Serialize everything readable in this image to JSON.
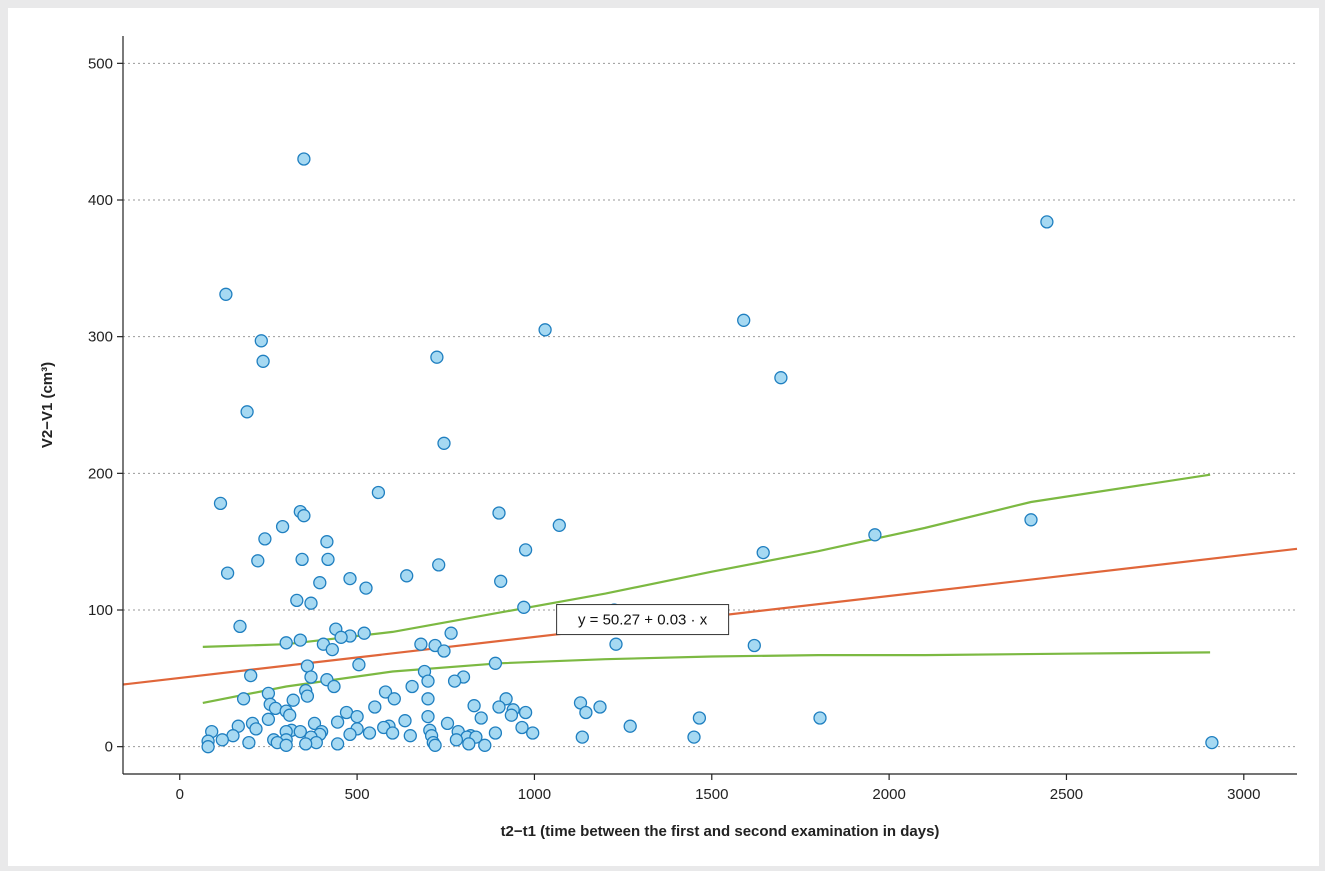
{
  "chart_data": {
    "type": "scatter",
    "title": "",
    "xlabel": "t2−t1 (time between the first and second examination in days)",
    "ylabel": "V2−V1 (cm³)",
    "xlim": [
      -160,
      3150
    ],
    "ylim": [
      -20,
      520
    ],
    "x_ticks": [
      0,
      500,
      1000,
      1500,
      2000,
      2500,
      3000
    ],
    "y_ticks": [
      0,
      100,
      200,
      300,
      400,
      500
    ],
    "grid": "horizontal dotted",
    "legend": "none",
    "annotation": "y = 50.27 + 0.03 · x",
    "colors": {
      "points_fill": "#a6d9f2",
      "points_edge": "#1f7fc0",
      "regression_line": "#e0663a",
      "confidence_band": "#7cb942"
    },
    "regression": {
      "intercept": 50.27,
      "slope": 0.03
    },
    "confidence_band": {
      "upper": [
        [
          65,
          73
        ],
        [
          300,
          75
        ],
        [
          600,
          84
        ],
        [
          900,
          98
        ],
        [
          1200,
          112
        ],
        [
          1500,
          128
        ],
        [
          1800,
          143
        ],
        [
          2100,
          160
        ],
        [
          2400,
          179
        ],
        [
          2905,
          199
        ]
      ],
      "lower": [
        [
          65,
          32
        ],
        [
          300,
          44
        ],
        [
          600,
          55
        ],
        [
          900,
          61
        ],
        [
          1200,
          64
        ],
        [
          1500,
          66
        ],
        [
          1800,
          67
        ],
        [
          2100,
          67
        ],
        [
          2500,
          68
        ],
        [
          2905,
          69
        ]
      ]
    },
    "points": [
      [
        350,
        430
      ],
      [
        2445,
        384
      ],
      [
        130,
        331
      ],
      [
        230,
        297
      ],
      [
        235,
        282
      ],
      [
        1030,
        305
      ],
      [
        725,
        285
      ],
      [
        1590,
        312
      ],
      [
        1695,
        270
      ],
      [
        190,
        245
      ],
      [
        745,
        222
      ],
      [
        560,
        186
      ],
      [
        115,
        178
      ],
      [
        900,
        171
      ],
      [
        1070,
        162
      ],
      [
        290,
        161
      ],
      [
        340,
        172
      ],
      [
        350,
        169
      ],
      [
        2400,
        166
      ],
      [
        1960,
        155
      ],
      [
        240,
        152
      ],
      [
        415,
        150
      ],
      [
        975,
        144
      ],
      [
        1645,
        142
      ],
      [
        345,
        137
      ],
      [
        418,
        137
      ],
      [
        730,
        133
      ],
      [
        220,
        136
      ],
      [
        135,
        127
      ],
      [
        640,
        125
      ],
      [
        480,
        123
      ],
      [
        905,
        121
      ],
      [
        395,
        120
      ],
      [
        525,
        116
      ],
      [
        330,
        107
      ],
      [
        370,
        105
      ],
      [
        970,
        102
      ],
      [
        1225,
        100
      ],
      [
        170,
        88
      ],
      [
        440,
        86
      ],
      [
        765,
        83
      ],
      [
        520,
        83
      ],
      [
        480,
        81
      ],
      [
        455,
        80
      ],
      [
        405,
        75
      ],
      [
        300,
        76
      ],
      [
        340,
        78
      ],
      [
        680,
        75
      ],
      [
        720,
        74
      ],
      [
        1230,
        75
      ],
      [
        1620,
        74
      ],
      [
        430,
        71
      ],
      [
        745,
        70
      ],
      [
        890,
        61
      ],
      [
        505,
        60
      ],
      [
        360,
        59
      ],
      [
        690,
        55
      ],
      [
        200,
        52
      ],
      [
        370,
        51
      ],
      [
        800,
        51
      ],
      [
        415,
        49
      ],
      [
        775,
        48
      ],
      [
        700,
        48
      ],
      [
        655,
        44
      ],
      [
        435,
        44
      ],
      [
        355,
        41
      ],
      [
        580,
        40
      ],
      [
        250,
        39
      ],
      [
        360,
        37
      ],
      [
        180,
        35
      ],
      [
        605,
        35
      ],
      [
        700,
        35
      ],
      [
        320,
        34
      ],
      [
        920,
        35
      ],
      [
        1130,
        32
      ],
      [
        830,
        30
      ],
      [
        255,
        31
      ],
      [
        550,
        29
      ],
      [
        1185,
        29
      ],
      [
        900,
        29
      ],
      [
        270,
        28
      ],
      [
        940,
        27
      ],
      [
        300,
        26
      ],
      [
        975,
        25
      ],
      [
        470,
        25
      ],
      [
        1145,
        25
      ],
      [
        935,
        23
      ],
      [
        310,
        23
      ],
      [
        500,
        22
      ],
      [
        700,
        22
      ],
      [
        1805,
        21
      ],
      [
        1465,
        21
      ],
      [
        850,
        21
      ],
      [
        250,
        20
      ],
      [
        635,
        19
      ],
      [
        205,
        17
      ],
      [
        380,
        17
      ],
      [
        445,
        18
      ],
      [
        755,
        17
      ],
      [
        165,
        15
      ],
      [
        590,
        15
      ],
      [
        1270,
        15
      ],
      [
        575,
        14
      ],
      [
        965,
        14
      ],
      [
        215,
        13
      ],
      [
        315,
        12
      ],
      [
        300,
        11
      ],
      [
        340,
        11
      ],
      [
        400,
        11
      ],
      [
        500,
        13
      ],
      [
        705,
        12
      ],
      [
        90,
        11
      ],
      [
        785,
        11
      ],
      [
        995,
        10
      ],
      [
        535,
        10
      ],
      [
        600,
        10
      ],
      [
        890,
        10
      ],
      [
        710,
        8
      ],
      [
        150,
        8
      ],
      [
        395,
        9
      ],
      [
        820,
        8
      ],
      [
        810,
        7
      ],
      [
        480,
        9
      ],
      [
        1450,
        7
      ],
      [
        1135,
        7
      ],
      [
        835,
        7
      ],
      [
        370,
        7
      ],
      [
        650,
        8
      ],
      [
        265,
        5
      ],
      [
        120,
        5
      ],
      [
        300,
        5
      ],
      [
        780,
        5
      ],
      [
        715,
        3
      ],
      [
        80,
        4
      ],
      [
        195,
        3
      ],
      [
        275,
        3
      ],
      [
        385,
        3
      ],
      [
        2910,
        3
      ],
      [
        815,
        2
      ],
      [
        445,
        2
      ],
      [
        300,
        1
      ],
      [
        355,
        2
      ],
      [
        720,
        1
      ],
      [
        860,
        1
      ],
      [
        80,
        0
      ]
    ]
  }
}
